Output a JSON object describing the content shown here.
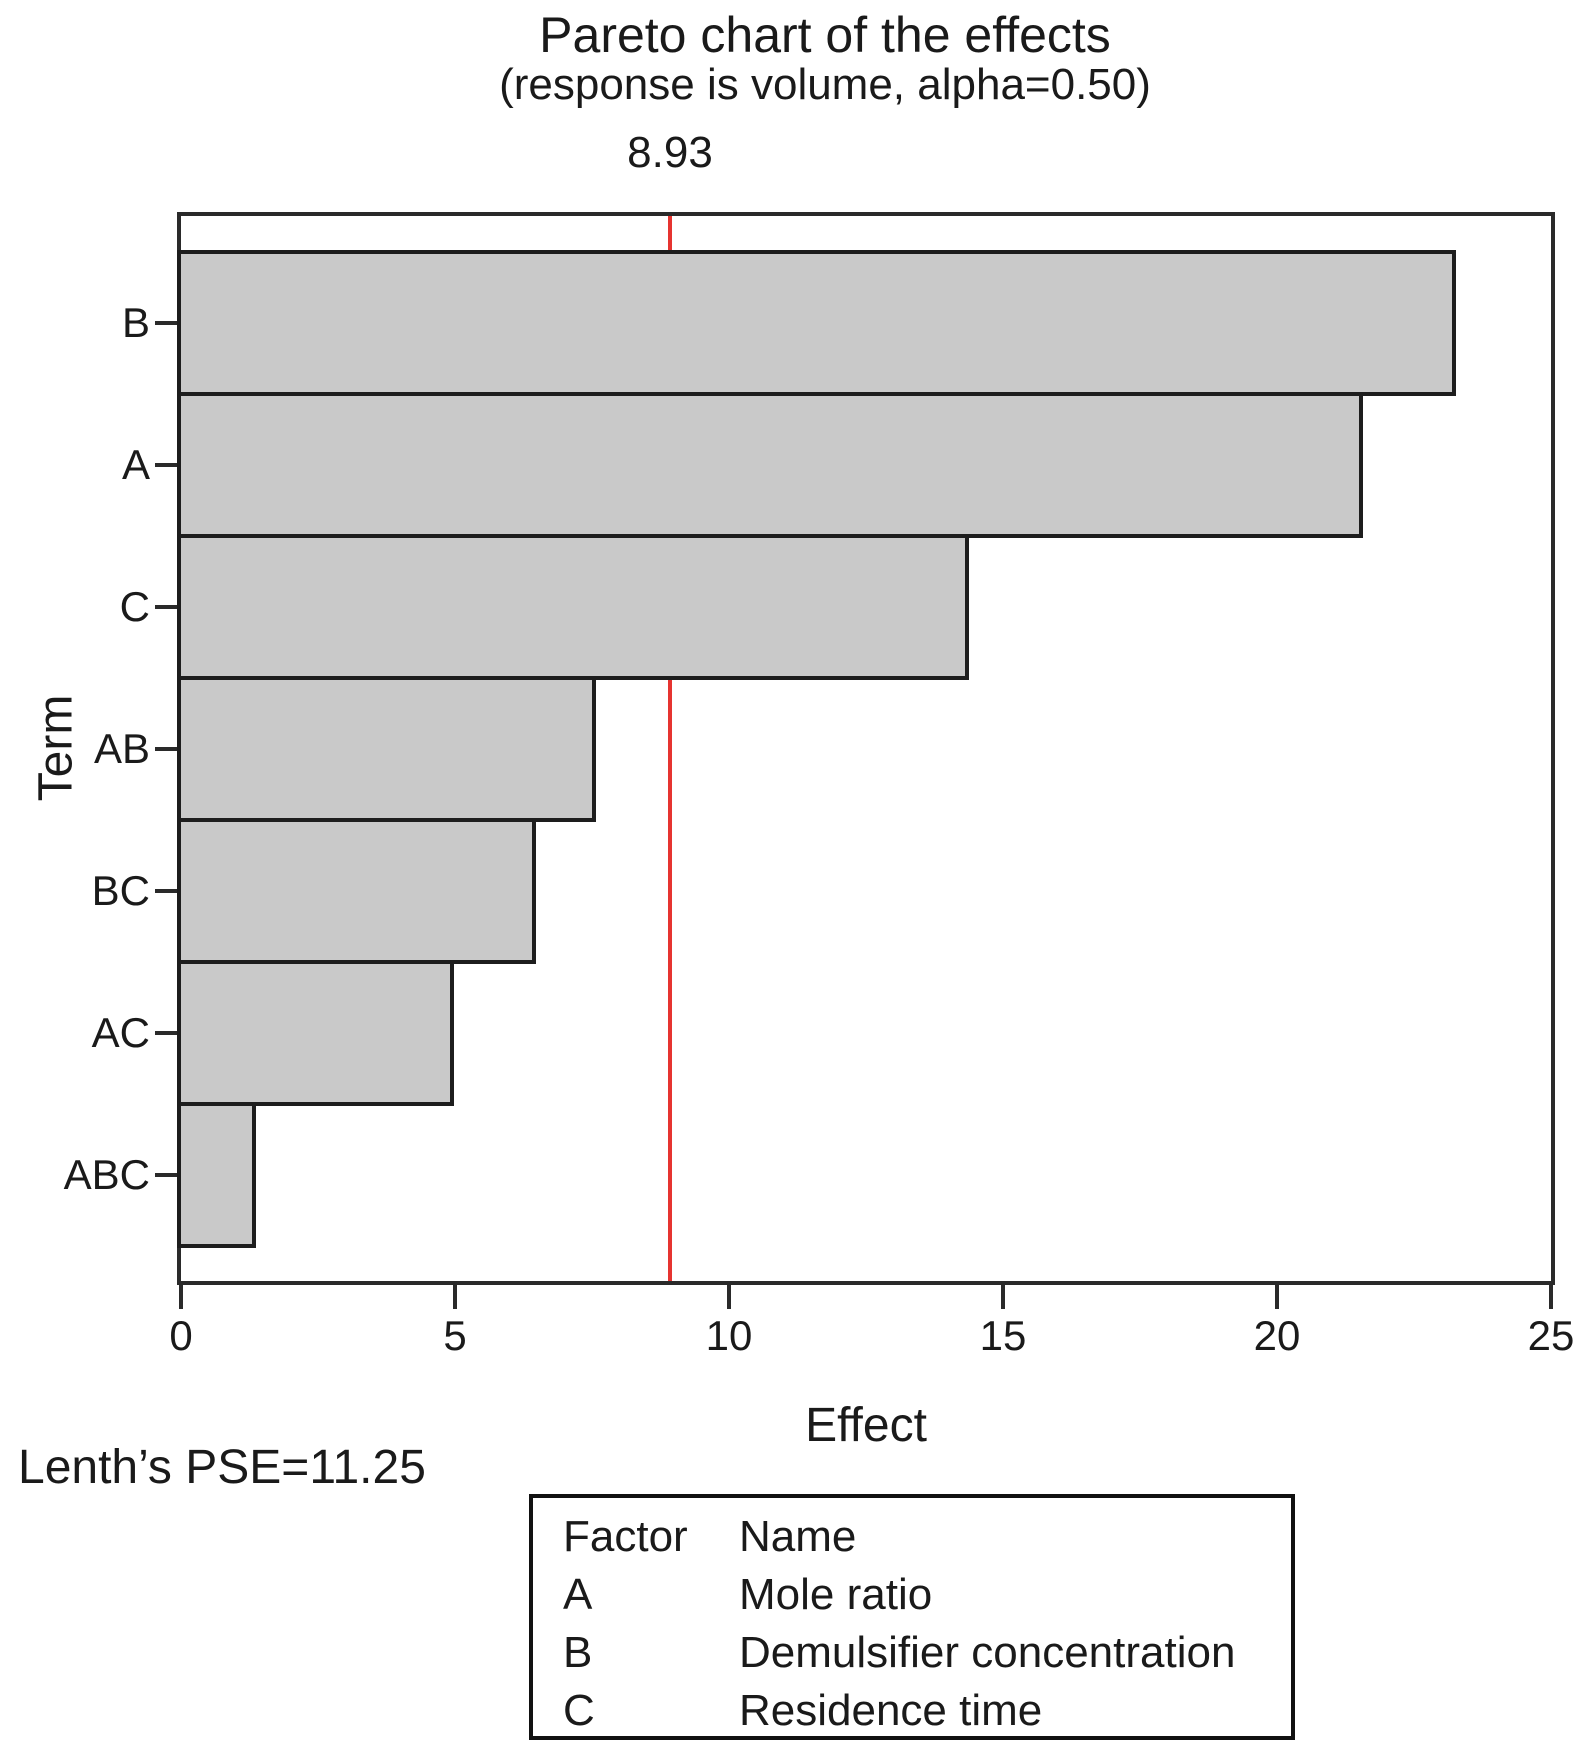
{
  "chart_data": {
    "type": "bar",
    "orientation": "horizontal",
    "title": "Pareto chart of the effects",
    "subtitle": "(response is volume, alpha=0.50)",
    "categories": [
      "B",
      "A",
      "C",
      "AB",
      "BC",
      "AC",
      "ABC"
    ],
    "values": [
      23.2,
      21.5,
      14.3,
      7.5,
      6.4,
      4.9,
      1.3
    ],
    "xlabel": "Effect",
    "ylabel": "Term",
    "xlim": [
      0,
      25
    ],
    "x_ticks": [
      "0",
      "5",
      "10",
      "15",
      "20",
      "25"
    ],
    "reference_line": {
      "value": 8.93,
      "label": "8.93",
      "color": "#e63430"
    },
    "footnote": "Lenth’s PSE=11.25",
    "bar_fill": "#c9c9c9",
    "bar_border": "#1d1d1d",
    "grid": false,
    "legend_table": {
      "headers": [
        "Factor",
        "Name"
      ],
      "rows": [
        [
          "A",
          "Mole ratio"
        ],
        [
          "B",
          "Demulsifier concentration"
        ],
        [
          "C",
          "Residence time"
        ]
      ]
    }
  }
}
